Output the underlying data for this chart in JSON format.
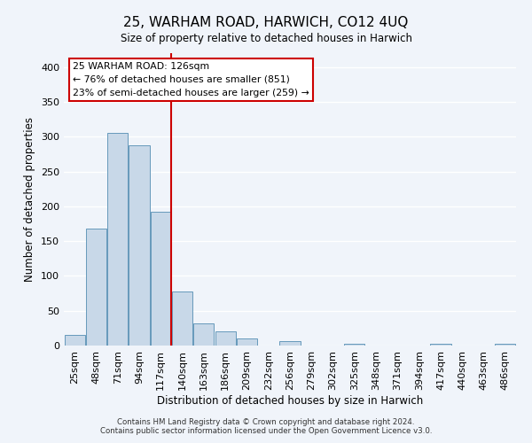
{
  "title": "25, WARHAM ROAD, HARWICH, CO12 4UQ",
  "subtitle": "Size of property relative to detached houses in Harwich",
  "xlabel": "Distribution of detached houses by size in Harwich",
  "ylabel": "Number of detached properties",
  "bar_labels": [
    "25sqm",
    "48sqm",
    "71sqm",
    "94sqm",
    "117sqm",
    "140sqm",
    "163sqm",
    "186sqm",
    "209sqm",
    "232sqm",
    "256sqm",
    "279sqm",
    "302sqm",
    "325sqm",
    "348sqm",
    "371sqm",
    "394sqm",
    "417sqm",
    "440sqm",
    "463sqm",
    "486sqm"
  ],
  "bar_heights": [
    15,
    168,
    305,
    288,
    192,
    78,
    32,
    20,
    10,
    0,
    6,
    0,
    0,
    3,
    0,
    0,
    0,
    3,
    0,
    0,
    3
  ],
  "bar_color": "#c8d8e8",
  "bar_edge_color": "#6699bb",
  "vline_x": 4.5,
  "vline_color": "#cc0000",
  "annotation_lines": [
    "25 WARHAM ROAD: 126sqm",
    "← 76% of detached houses are smaller (851)",
    "23% of semi-detached houses are larger (259) →"
  ],
  "annotation_box_color": "#ffffff",
  "annotation_box_edge": "#cc0000",
  "ylim": [
    0,
    420
  ],
  "background_color": "#f0f4fa",
  "grid_color": "#ffffff",
  "footnote1": "Contains HM Land Registry data © Crown copyright and database right 2024.",
  "footnote2": "Contains public sector information licensed under the Open Government Licence v3.0."
}
